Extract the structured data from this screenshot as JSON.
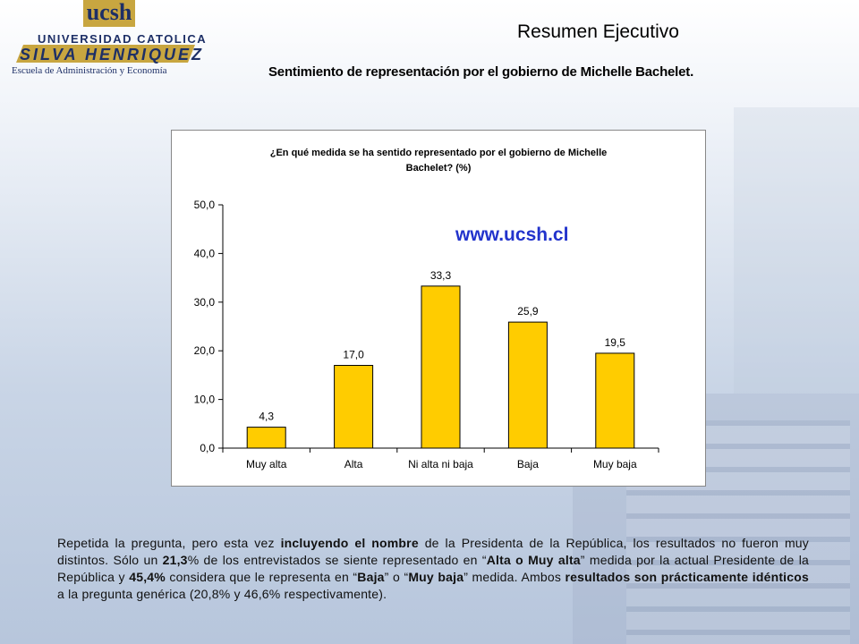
{
  "logo": {
    "mark": "ucsh",
    "line1": "UNIVERSIDAD CATOLICA",
    "line2": "SILVA HENRIQUEZ",
    "school": "Escuela de Administración y Economía"
  },
  "header": {
    "title": "Resumen Ejecutivo",
    "subtitle": "Sentimiento de representación por el gobierno de Michelle Bachelet."
  },
  "chart_data": {
    "type": "bar",
    "title_lines": [
      "¿En qué medida se ha sentido representado por el gobierno de Michelle",
      "Bachelet? (%)"
    ],
    "watermark": "www.ucsh.cl",
    "categories": [
      "Muy alta",
      "Alta",
      "Ni alta ni baja",
      "Baja",
      "Muy baja"
    ],
    "values": [
      4.3,
      17.0,
      33.3,
      25.9,
      19.5
    ],
    "value_labels": [
      "4,3",
      "17,0",
      "33,3",
      "25,9",
      "19,5"
    ],
    "ylim": [
      0,
      50
    ],
    "yticks": [
      0,
      10,
      20,
      30,
      40,
      50
    ],
    "ytick_labels": [
      "0,0",
      "10,0",
      "20,0",
      "30,0",
      "40,0",
      "50,0"
    ],
    "xlabel": "",
    "ylabel": "",
    "grid": false,
    "bar_color": "#FFCC00",
    "bar_edge_color": "#000000",
    "watermark_color": "#2233CC"
  },
  "paragraph": {
    "s1": "Repetida la pregunta, pero esta vez ",
    "b1": "incluyendo el nombre",
    "s2": " de la Presidenta de la República, los resultados no fueron muy distintos. Sólo un ",
    "b2": "21,3",
    "s3": "% de los entrevistados se siente representado en “",
    "b3": "Alta o Muy alta",
    "s4": "” medida por la actual Presidente de la República y ",
    "b4": "45,4%",
    "s5": " considera que le representa en “",
    "b5": "Baja",
    "s6": "” o “",
    "b6": "Muy baja",
    "s7": "” medida. Ambos ",
    "b7": "resultados son prácticamente idénticos",
    "s8": " a la pregunta genérica (20,8% y 46,6% respectivamente)."
  }
}
